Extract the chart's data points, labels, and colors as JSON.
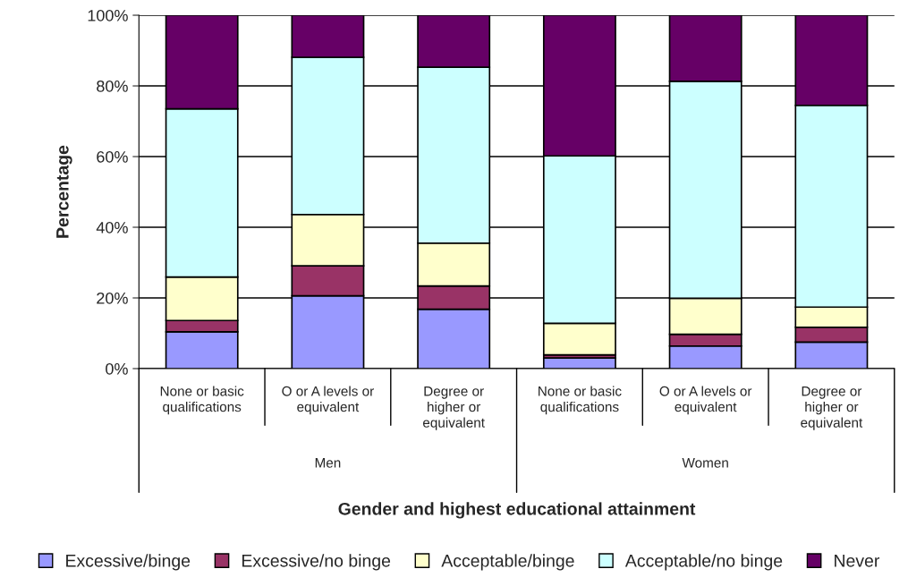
{
  "chart_data": {
    "type": "bar",
    "stacked": true,
    "xlabel": "Gender and highest educational attainment",
    "ylabel": "Percentage",
    "categories": [
      "None or basic\nqualifications",
      "O or A levels or\nequivalent",
      "Degree or\nhigher or\nequivalent",
      "None or basic\nqualifications",
      "O or A levels or\nequivalent",
      "Degree or\nhigher or\nequivalent"
    ],
    "annotations": [
      "Men",
      "Women"
    ],
    "series": [
      {
        "name": "Excessive/binge",
        "color": "#9999ff",
        "values": [
          10.4,
          20.6,
          16.8,
          3.0,
          6.4,
          7.5
        ]
      },
      {
        "name": "Excessive/no binge",
        "color": "#993366",
        "values": [
          3.2,
          8.5,
          6.6,
          0.9,
          3.3,
          4.2
        ]
      },
      {
        "name": "Acceptable/binge",
        "color": "#ffffcc",
        "values": [
          12.3,
          14.5,
          12.1,
          8.9,
          10.2,
          5.7
        ]
      },
      {
        "name": "Acceptable/no binge",
        "color": "#ccffff",
        "values": [
          47.6,
          44.5,
          49.8,
          47.4,
          61.4,
          57.1
        ]
      },
      {
        "name": "Never",
        "color": "#660066",
        "values": [
          26.5,
          11.9,
          14.7,
          39.8,
          18.7,
          25.5
        ]
      }
    ],
    "ylim": [
      0,
      100
    ],
    "yticks": [
      {
        "value": 0,
        "label": "0%"
      },
      {
        "value": 20,
        "label": "20%"
      },
      {
        "value": 40,
        "label": "40%"
      },
      {
        "value": 60,
        "label": "60%"
      },
      {
        "value": 80,
        "label": "80%"
      },
      {
        "value": 100,
        "label": "100%"
      }
    ],
    "grid": "y",
    "legend": "bottom"
  }
}
